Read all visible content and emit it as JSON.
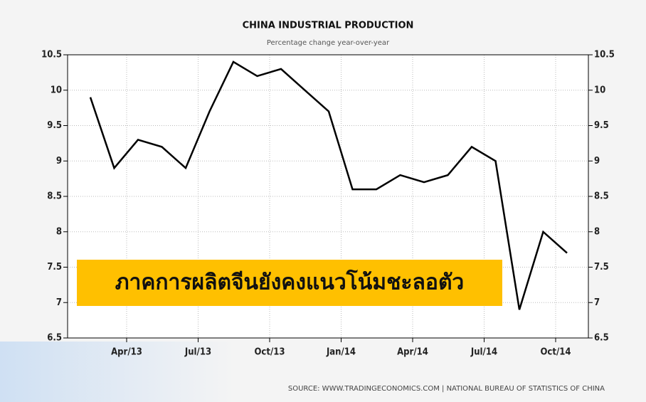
{
  "chart_data": {
    "type": "line",
    "title": "CHINA INDUSTRIAL PRODUCTION",
    "subtitle": "Percentage change year-over-year",
    "source": "SOURCE: WWW.TRADINGECONOMICS.COM | NATIONAL BUREAU OF STATISTICS OF CHINA",
    "annotation": "ภาคการผลิตจีนยังคงแนวโน้มชะลอตัว",
    "categories": [
      null,
      null,
      "Apr/13",
      null,
      null,
      "Jul/13",
      null,
      null,
      "Oct/13",
      null,
      null,
      "Jan/14",
      null,
      null,
      "Apr/14",
      null,
      null,
      "Jul/14",
      null,
      null,
      "Oct/14"
    ],
    "series": [
      {
        "color": "#000000",
        "values": [
          9.9,
          8.9,
          9.3,
          9.2,
          8.9,
          9.7,
          10.4,
          10.2,
          10.3,
          10.0,
          9.7,
          8.6,
          8.6,
          8.8,
          8.7,
          8.8,
          9.2,
          9.0,
          6.9,
          8.0,
          7.7
        ]
      }
    ],
    "ylim": [
      6.5,
      10.5
    ],
    "yticks": [
      6.5,
      7,
      7.5,
      8,
      8.5,
      9,
      9.5,
      10,
      10.5
    ],
    "y2lim": [
      6.5,
      10.5
    ],
    "y2ticks": [
      6.5,
      7,
      7.5,
      8,
      8.5,
      9,
      9.5,
      10,
      10.5
    ],
    "grid": true
  }
}
